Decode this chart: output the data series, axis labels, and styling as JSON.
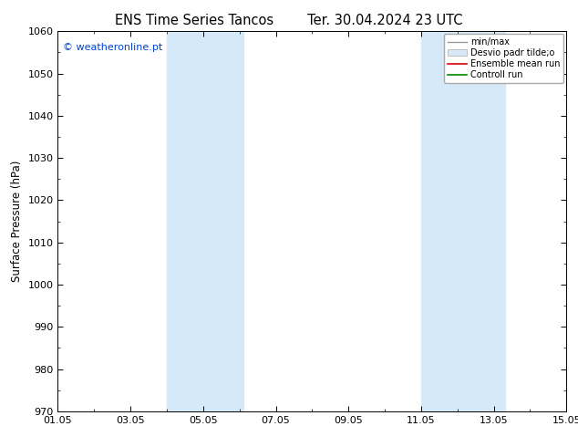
{
  "title_left": "ENS Time Series Tancos",
  "title_right": "Ter. 30.04.2024 23 UTC",
  "ylabel": "Surface Pressure (hPa)",
  "ylim": [
    970,
    1060
  ],
  "yticks": [
    970,
    980,
    990,
    1000,
    1010,
    1020,
    1030,
    1040,
    1050,
    1060
  ],
  "xlim_start": 0,
  "xlim_end": 14,
  "xtick_labels": [
    "01.05",
    "03.05",
    "05.05",
    "07.05",
    "09.05",
    "11.05",
    "13.05",
    "15.05"
  ],
  "xtick_positions": [
    0,
    2,
    4,
    6,
    8,
    10,
    12,
    14
  ],
  "shaded_bands": [
    {
      "xmin": 3.0,
      "xmax": 5.1
    },
    {
      "xmin": 10.0,
      "xmax": 12.3
    }
  ],
  "band_color": "#d6e9f8",
  "background_color": "#ffffff",
  "watermark": "© weatheronline.pt",
  "watermark_color": "#0044cc",
  "legend_labels": [
    "min/max",
    "Desvio padr tilde;o",
    "Ensemble mean run",
    "Controll run"
  ],
  "title_fontsize": 10.5,
  "axis_fontsize": 8.5,
  "tick_fontsize": 8,
  "watermark_fontsize": 8
}
